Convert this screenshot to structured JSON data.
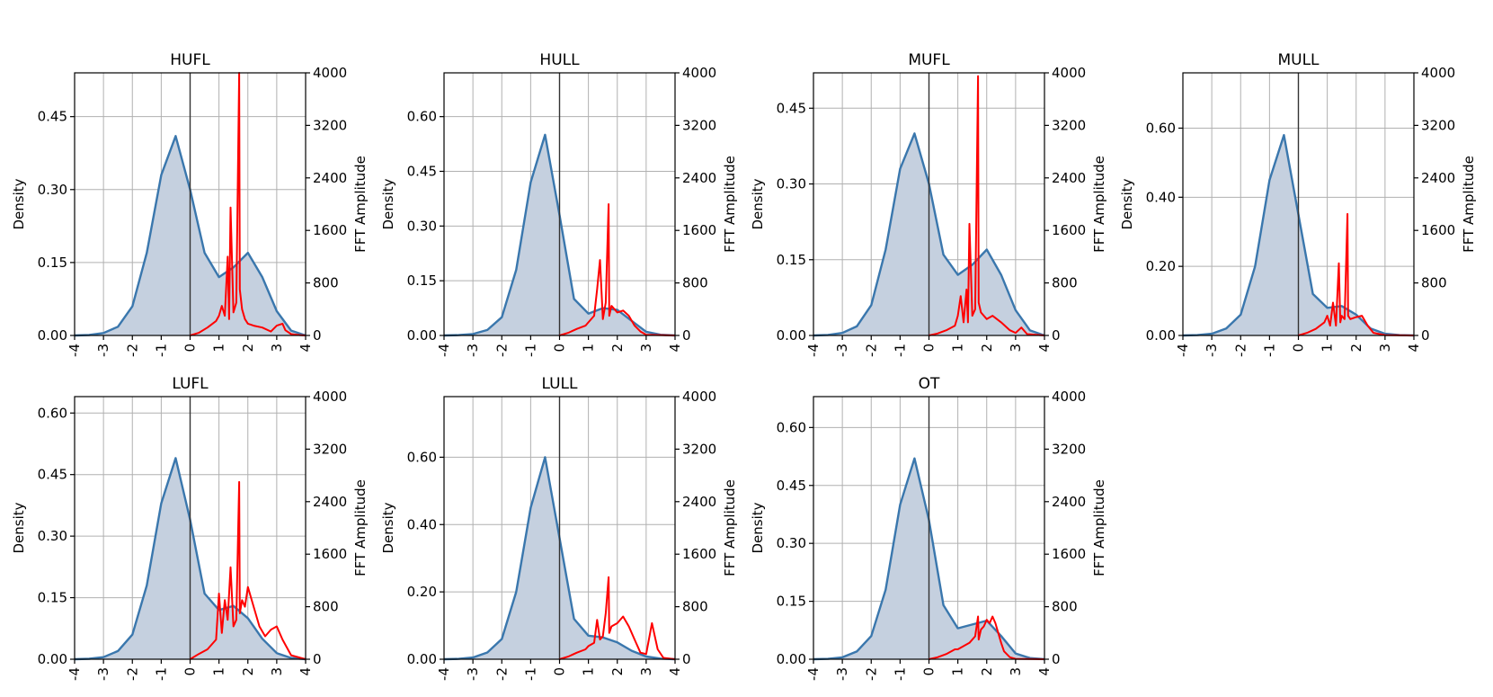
{
  "figure": {
    "colors": {
      "kde_line": "#3a77ad",
      "kde_fill": "#c5d0df",
      "fft_line": "#ff0000",
      "grid": "#b0b0b0",
      "zero_line": "#333333"
    }
  },
  "chart_data": [
    {
      "type": "area",
      "title": "HUFL",
      "xlim": [
        -4,
        4
      ],
      "xticks": [
        "-4",
        "-3",
        "-2",
        "-1",
        "0",
        "1",
        "2",
        "3",
        "4"
      ],
      "ylabel": "Density",
      "ylim": [
        0,
        0.54
      ],
      "yticks": [
        "0.00",
        "0.15",
        "0.30",
        "0.45"
      ],
      "ytick_values": [
        0,
        0.15,
        0.3,
        0.45
      ],
      "y2label": "FFT Amplitude",
      "y2lim": [
        0,
        4000
      ],
      "y2ticks": [
        "0",
        "800",
        "1600",
        "2400",
        "3200",
        "4000"
      ],
      "density": {
        "x": [
          -4,
          -3.5,
          -3,
          -2.5,
          -2,
          -1.5,
          -1,
          -0.5,
          0,
          0.5,
          1,
          1.5,
          2,
          2.5,
          3,
          3.5,
          4
        ],
        "y": [
          0,
          0.001,
          0.005,
          0.018,
          0.06,
          0.17,
          0.33,
          0.41,
          0.3,
          0.17,
          0.12,
          0.14,
          0.17,
          0.12,
          0.05,
          0.01,
          0
        ]
      },
      "fft": {
        "x": [
          0,
          0.3,
          0.6,
          0.9,
          1.0,
          1.1,
          1.2,
          1.3,
          1.35,
          1.4,
          1.5,
          1.6,
          1.7,
          1.72,
          1.8,
          1.9,
          2.0,
          2.2,
          2.5,
          2.8,
          3.0,
          3.2,
          3.3,
          3.5,
          3.8,
          4
        ],
        "y": [
          0,
          40,
          120,
          220,
          300,
          450,
          300,
          1200,
          250,
          1950,
          350,
          500,
          4000,
          700,
          400,
          250,
          180,
          150,
          120,
          60,
          150,
          180,
          80,
          20,
          5,
          0
        ]
      }
    },
    {
      "type": "area",
      "title": "HULL",
      "xlim": [
        -4,
        4
      ],
      "xticks": [
        "-4",
        "-3",
        "-2",
        "-1",
        "0",
        "1",
        "2",
        "3",
        "4"
      ],
      "ylabel": "Density",
      "ylim": [
        0,
        0.72
      ],
      "yticks": [
        "0.00",
        "0.15",
        "0.30",
        "0.45",
        "0.60"
      ],
      "ytick_values": [
        0,
        0.15,
        0.3,
        0.45,
        0.6
      ],
      "y2label": "FFT Amplitude",
      "y2lim": [
        0,
        4000
      ],
      "y2ticks": [
        "0",
        "800",
        "1600",
        "2400",
        "3200",
        "4000"
      ],
      "density": {
        "x": [
          -4,
          -3.5,
          -3,
          -2.5,
          -2,
          -1.5,
          -1,
          -0.5,
          0,
          0.5,
          1,
          1.5,
          2,
          2.5,
          3,
          3.5,
          4
        ],
        "y": [
          0,
          0.001,
          0.004,
          0.015,
          0.05,
          0.18,
          0.42,
          0.55,
          0.33,
          0.1,
          0.06,
          0.075,
          0.07,
          0.04,
          0.01,
          0.002,
          0
        ]
      },
      "fft": {
        "x": [
          0,
          0.3,
          0.6,
          0.9,
          1.0,
          1.2,
          1.3,
          1.4,
          1.5,
          1.6,
          1.7,
          1.72,
          1.8,
          2.0,
          2.2,
          2.4,
          2.6,
          2.8,
          3.0,
          4
        ],
        "y": [
          0,
          40,
          100,
          150,
          200,
          300,
          700,
          1150,
          250,
          500,
          2000,
          300,
          450,
          350,
          380,
          300,
          150,
          60,
          10,
          0
        ]
      }
    },
    {
      "type": "area",
      "title": "MUFL",
      "xlim": [
        -4,
        4
      ],
      "xticks": [
        "-4",
        "-3",
        "-2",
        "-1",
        "0",
        "1",
        "2",
        "3",
        "4"
      ],
      "ylabel": "Density",
      "ylim": [
        0,
        0.52
      ],
      "yticks": [
        "0.00",
        "0.15",
        "0.30",
        "0.45"
      ],
      "ytick_values": [
        0,
        0.15,
        0.3,
        0.45
      ],
      "y2label": "FFT Amplitude",
      "y2lim": [
        0,
        4000
      ],
      "y2ticks": [
        "0",
        "800",
        "1600",
        "2400",
        "3200",
        "4000"
      ],
      "density": {
        "x": [
          -4,
          -3.5,
          -3,
          -2.5,
          -2,
          -1.5,
          -1,
          -0.5,
          0,
          0.5,
          1,
          1.5,
          2,
          2.5,
          3,
          3.5,
          4
        ],
        "y": [
          0,
          0.001,
          0.005,
          0.018,
          0.06,
          0.17,
          0.33,
          0.4,
          0.3,
          0.16,
          0.12,
          0.14,
          0.17,
          0.12,
          0.05,
          0.01,
          0
        ]
      },
      "fft": {
        "x": [
          0,
          0.3,
          0.6,
          0.9,
          1.0,
          1.1,
          1.2,
          1.3,
          1.35,
          1.4,
          1.5,
          1.6,
          1.7,
          1.72,
          1.8,
          2.0,
          2.2,
          2.5,
          2.8,
          3.0,
          3.2,
          3.4,
          4
        ],
        "y": [
          0,
          30,
          80,
          150,
          300,
          600,
          200,
          700,
          200,
          1700,
          300,
          400,
          3950,
          500,
          350,
          250,
          300,
          200,
          80,
          40,
          120,
          20,
          0
        ]
      }
    },
    {
      "type": "area",
      "title": "MULL",
      "xlim": [
        -4,
        4
      ],
      "xticks": [
        "-4",
        "-3",
        "-2",
        "-1",
        "0",
        "1",
        "2",
        "3",
        "4"
      ],
      "ylabel": "Density",
      "ylim": [
        0,
        0.76
      ],
      "yticks": [
        "0.00",
        "0.20",
        "0.40",
        "0.60"
      ],
      "ytick_values": [
        0,
        0.2,
        0.4,
        0.6
      ],
      "y2label": "FFT Amplitude",
      "y2lim": [
        0,
        4000
      ],
      "y2ticks": [
        "0",
        "800",
        "1600",
        "2400",
        "3200",
        "4000"
      ],
      "density": {
        "x": [
          -4,
          -3.5,
          -3,
          -2.5,
          -2,
          -1.5,
          -1,
          -0.5,
          0,
          0.5,
          1,
          1.5,
          2,
          2.5,
          3,
          3.5,
          4
        ],
        "y": [
          0,
          0.001,
          0.005,
          0.02,
          0.06,
          0.2,
          0.45,
          0.58,
          0.35,
          0.12,
          0.08,
          0.085,
          0.06,
          0.02,
          0.005,
          0.001,
          0
        ]
      },
      "fft": {
        "x": [
          0,
          0.3,
          0.6,
          0.9,
          1.0,
          1.1,
          1.2,
          1.3,
          1.4,
          1.45,
          1.5,
          1.6,
          1.7,
          1.72,
          1.8,
          2.0,
          2.2,
          2.4,
          2.6,
          3.0,
          4
        ],
        "y": [
          0,
          40,
          100,
          200,
          300,
          150,
          500,
          150,
          1100,
          200,
          300,
          250,
          1850,
          300,
          250,
          280,
          300,
          150,
          40,
          5,
          0
        ]
      }
    },
    {
      "type": "area",
      "title": "LUFL",
      "xlim": [
        -4,
        4
      ],
      "xticks": [
        "-4",
        "-3",
        "-2",
        "-1",
        "0",
        "1",
        "2",
        "3",
        "4"
      ],
      "ylabel": "Density",
      "ylim": [
        0,
        0.64
      ],
      "yticks": [
        "0.00",
        "0.15",
        "0.30",
        "0.45",
        "0.60"
      ],
      "ytick_values": [
        0,
        0.15,
        0.3,
        0.45,
        0.6
      ],
      "y2label": "FFT Amplitude",
      "y2lim": [
        0,
        4000
      ],
      "y2ticks": [
        "0",
        "800",
        "1600",
        "2400",
        "3200",
        "4000"
      ],
      "density": {
        "x": [
          -4,
          -3.5,
          -3,
          -2.5,
          -2,
          -1.5,
          -1,
          -0.5,
          0,
          0.5,
          1,
          1.5,
          2,
          2.5,
          3,
          3.5,
          4
        ],
        "y": [
          0,
          0.001,
          0.005,
          0.02,
          0.06,
          0.18,
          0.38,
          0.49,
          0.34,
          0.16,
          0.12,
          0.13,
          0.1,
          0.05,
          0.015,
          0.003,
          0
        ]
      },
      "fft": {
        "x": [
          0,
          0.3,
          0.6,
          0.9,
          1.0,
          1.1,
          1.2,
          1.3,
          1.4,
          1.5,
          1.6,
          1.7,
          1.72,
          1.8,
          1.9,
          2.0,
          2.2,
          2.4,
          2.6,
          2.8,
          3.0,
          3.2,
          3.5,
          4
        ],
        "y": [
          0,
          80,
          150,
          300,
          1000,
          400,
          900,
          600,
          1400,
          500,
          600,
          2700,
          700,
          900,
          800,
          1100,
          800,
          500,
          350,
          450,
          500,
          300,
          60,
          0
        ]
      }
    },
    {
      "type": "area",
      "title": "LULL",
      "xlim": [
        -4,
        4
      ],
      "xticks": [
        "-4",
        "-3",
        "-2",
        "-1",
        "0",
        "1",
        "2",
        "3",
        "4"
      ],
      "ylabel": "Density",
      "ylim": [
        0,
        0.78
      ],
      "yticks": [
        "0.00",
        "0.20",
        "0.40",
        "0.60"
      ],
      "ytick_values": [
        0,
        0.2,
        0.4,
        0.6
      ],
      "y2label": "FFT Amplitude",
      "y2lim": [
        0,
        4000
      ],
      "y2ticks": [
        "0",
        "800",
        "1600",
        "2400",
        "3200",
        "4000"
      ],
      "density": {
        "x": [
          -4,
          -3.5,
          -3,
          -2.5,
          -2,
          -1.5,
          -1,
          -0.5,
          0,
          0.5,
          1,
          1.5,
          2,
          2.5,
          3,
          3.5,
          4
        ],
        "y": [
          0,
          0.001,
          0.005,
          0.02,
          0.06,
          0.2,
          0.45,
          0.6,
          0.36,
          0.12,
          0.07,
          0.065,
          0.05,
          0.025,
          0.008,
          0.002,
          0
        ]
      },
      "fft": {
        "x": [
          0,
          0.3,
          0.6,
          0.9,
          1.0,
          1.2,
          1.3,
          1.4,
          1.5,
          1.6,
          1.7,
          1.72,
          1.8,
          2.0,
          2.2,
          2.4,
          2.6,
          2.8,
          3.0,
          3.2,
          3.4,
          3.6,
          4
        ],
        "y": [
          0,
          40,
          100,
          150,
          200,
          250,
          600,
          300,
          350,
          700,
          1250,
          400,
          500,
          550,
          650,
          500,
          300,
          100,
          80,
          550,
          150,
          20,
          0
        ]
      }
    },
    {
      "type": "area",
      "title": "OT",
      "xlim": [
        -4,
        4
      ],
      "xticks": [
        "-4",
        "-3",
        "-2",
        "-1",
        "0",
        "1",
        "2",
        "3",
        "4"
      ],
      "ylabel": "Density",
      "ylim": [
        0,
        0.68
      ],
      "yticks": [
        "0.00",
        "0.15",
        "0.30",
        "0.45",
        "0.60"
      ],
      "ytick_values": [
        0,
        0.15,
        0.3,
        0.45,
        0.6
      ],
      "y2label": "FFT Amplitude",
      "y2lim": [
        0,
        4000
      ],
      "y2ticks": [
        "0",
        "800",
        "1600",
        "2400",
        "3200",
        "4000"
      ],
      "density": {
        "x": [
          -4,
          -3.5,
          -3,
          -2.5,
          -2,
          -1.5,
          -1,
          -0.5,
          0,
          0.5,
          1,
          1.5,
          2,
          2.5,
          3,
          3.5,
          4
        ],
        "y": [
          0,
          0.001,
          0.005,
          0.02,
          0.06,
          0.18,
          0.4,
          0.52,
          0.36,
          0.14,
          0.08,
          0.09,
          0.1,
          0.06,
          0.015,
          0.003,
          0
        ]
      },
      "fft": {
        "x": [
          0,
          0.3,
          0.6,
          0.9,
          1.0,
          1.2,
          1.4,
          1.6,
          1.7,
          1.72,
          1.8,
          1.9,
          2.0,
          2.1,
          2.2,
          2.3,
          2.4,
          2.5,
          2.6,
          2.8,
          3.0,
          4
        ],
        "y": [
          0,
          30,
          80,
          150,
          150,
          200,
          250,
          350,
          650,
          300,
          450,
          500,
          600,
          550,
          650,
          550,
          400,
          250,
          120,
          30,
          5,
          0
        ]
      }
    }
  ]
}
